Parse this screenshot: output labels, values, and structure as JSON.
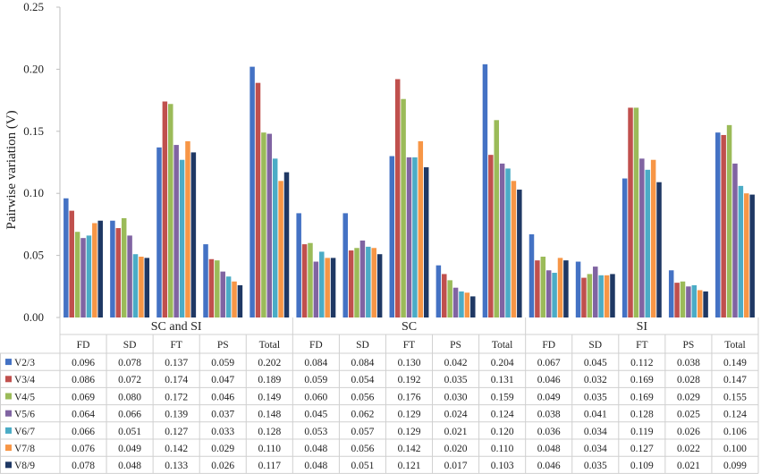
{
  "chart_data": {
    "type": "bar",
    "title": "",
    "xlabel": "",
    "ylabel": "Pairwise variation (V)",
    "ylim": [
      0,
      0.25
    ],
    "yticks": [
      "0.00",
      "0.05",
      "0.10",
      "0.15",
      "0.20",
      "0.25"
    ],
    "grid": false,
    "legend_position": "table-left",
    "groups": [
      "SC and SI",
      "SC",
      "SI"
    ],
    "categories": [
      "FD",
      "SD",
      "FT",
      "PS",
      "Total",
      "FD",
      "SD",
      "FT",
      "PS",
      "Total",
      "FD",
      "SD",
      "FT",
      "PS",
      "Total"
    ],
    "series": [
      {
        "name": "V2/3",
        "color": "#4472C4",
        "values": [
          0.096,
          0.078,
          0.137,
          0.059,
          0.202,
          0.084,
          0.084,
          0.13,
          0.042,
          0.204,
          0.067,
          0.045,
          0.112,
          0.038,
          0.149
        ],
        "labels": [
          "0.096",
          "0.078",
          "0.137",
          "0.059",
          "0.202",
          "0.084",
          "0.084",
          "0.130",
          "0.042",
          "0.204",
          "0.067",
          "0.045",
          "0.112",
          "0.038",
          "0.149"
        ]
      },
      {
        "name": "V3/4",
        "color": "#C0504D",
        "values": [
          0.086,
          0.072,
          0.174,
          0.047,
          0.189,
          0.059,
          0.054,
          0.192,
          0.035,
          0.131,
          0.046,
          0.032,
          0.169,
          0.028,
          0.147
        ],
        "labels": [
          "0.086",
          "0.072",
          "0.174",
          "0.047",
          "0.189",
          "0.059",
          "0.054",
          "0.192",
          "0.035",
          "0.131",
          "0.046",
          "0.032",
          "0.169",
          "0.028",
          "0.147"
        ]
      },
      {
        "name": "V4/5",
        "color": "#9BBB59",
        "values": [
          0.069,
          0.08,
          0.172,
          0.046,
          0.149,
          0.06,
          0.056,
          0.176,
          0.03,
          0.159,
          0.049,
          0.035,
          0.169,
          0.029,
          0.155
        ],
        "labels": [
          "0.069",
          "0.080",
          "0.172",
          "0.046",
          "0.149",
          "0.060",
          "0.056",
          "0.176",
          "0.030",
          "0.159",
          "0.049",
          "0.035",
          "0.169",
          "0.029",
          "0.155"
        ]
      },
      {
        "name": "V5/6",
        "color": "#8064A2",
        "values": [
          0.064,
          0.066,
          0.139,
          0.037,
          0.148,
          0.045,
          0.062,
          0.129,
          0.024,
          0.124,
          0.038,
          0.041,
          0.128,
          0.025,
          0.124
        ],
        "labels": [
          "0.064",
          "0.066",
          "0.139",
          "0.037",
          "0.148",
          "0.045",
          "0.062",
          "0.129",
          "0.024",
          "0.124",
          "0.038",
          "0.041",
          "0.128",
          "0.025",
          "0.124"
        ]
      },
      {
        "name": "V6/7",
        "color": "#4BACC6",
        "values": [
          0.066,
          0.051,
          0.127,
          0.033,
          0.128,
          0.053,
          0.057,
          0.129,
          0.021,
          0.12,
          0.036,
          0.034,
          0.119,
          0.026,
          0.106
        ],
        "labels": [
          "0.066",
          "0.051",
          "0.127",
          "0.033",
          "0.128",
          "0.053",
          "0.057",
          "0.129",
          "0.021",
          "0.120",
          "0.036",
          "0.034",
          "0.119",
          "0.026",
          "0.106"
        ]
      },
      {
        "name": "V7/8",
        "color": "#F79646",
        "values": [
          0.076,
          0.049,
          0.142,
          0.029,
          0.11,
          0.048,
          0.056,
          0.142,
          0.02,
          0.11,
          0.048,
          0.034,
          0.127,
          0.022,
          0.1
        ],
        "labels": [
          "0.076",
          "0.049",
          "0.142",
          "0.029",
          "0.110",
          "0.048",
          "0.056",
          "0.142",
          "0.020",
          "0.110",
          "0.048",
          "0.034",
          "0.127",
          "0.022",
          "0.100"
        ]
      },
      {
        "name": "V8/9",
        "color": "#1F3864",
        "values": [
          0.078,
          0.048,
          0.133,
          0.026,
          0.117,
          0.048,
          0.051,
          0.121,
          0.017,
          0.103,
          0.046,
          0.035,
          0.109,
          0.021,
          0.099
        ],
        "labels": [
          "0.078",
          "0.048",
          "0.133",
          "0.026",
          "0.117",
          "0.048",
          "0.051",
          "0.121",
          "0.017",
          "0.103",
          "0.046",
          "0.035",
          "0.109",
          "0.021",
          "0.099"
        ]
      }
    ]
  }
}
